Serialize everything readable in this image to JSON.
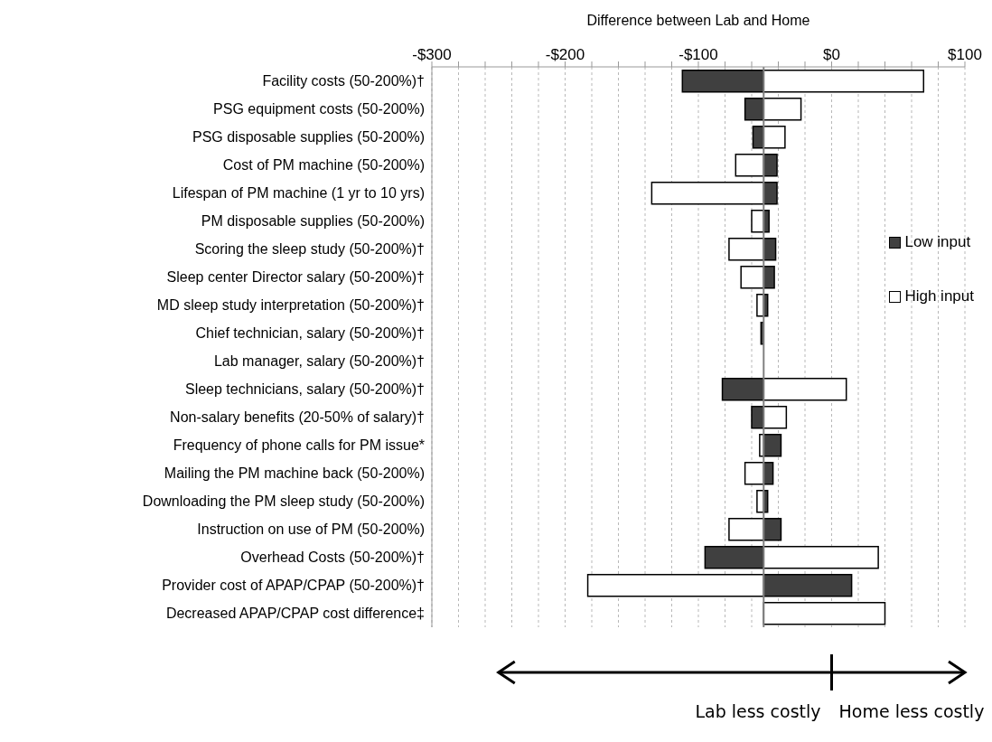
{
  "chart_data": {
    "type": "bar",
    "orientation": "horizontal",
    "xlabel": "Difference between Lab and Home",
    "categories": [
      "Facility costs (50-200%)†",
      "PSG equipment costs (50-200%)",
      "PSG disposable supplies (50-200%)",
      "Cost of PM machine (50-200%)",
      "Lifespan of PM machine (1 yr to 10 yrs)",
      "PM disposable supplies (50-200%)",
      "Scoring the sleep study (50-200%)†",
      "Sleep center Director salary (50-200%)†",
      "MD sleep study interpretation (50-200%)†",
      "Chief technician, salary (50-200%)†",
      "Lab manager, salary (50-200%)†",
      "Sleep technicians, salary (50-200%)†",
      "Non-salary benefits (20-50% of salary)†",
      "Frequency of phone calls for PM issue*",
      "Mailing the PM machine back (50-200%)",
      "Downloading the PM sleep study (50-200%)",
      "Instruction on use of PM (50-200%)",
      "Overhead Costs (50-200%)†",
      "Provider cost of APAP/CPAP (50-200%)†",
      "Decreased APAP/CPAP cost difference‡"
    ],
    "series": [
      {
        "name": "Low input",
        "color": "#404040",
        "base": [
          -51,
          -51,
          -51,
          -51,
          -51,
          -51,
          -51,
          -51,
          -51,
          -51,
          null,
          -51,
          -51,
          -51,
          -51,
          -51,
          -51,
          -51,
          -51,
          null
        ],
        "values": [
          -61,
          -14,
          -8,
          10,
          10,
          4,
          9,
          8,
          3,
          -2,
          null,
          -31,
          -9,
          13,
          7,
          3,
          13,
          -44,
          66,
          null
        ]
      },
      {
        "name": "High input",
        "color": "#ffffff",
        "base": [
          -51,
          -51,
          -51,
          -51,
          -51,
          -51,
          -51,
          -51,
          -51,
          null,
          null,
          -51,
          -51,
          -51,
          -51,
          -51,
          -51,
          -51,
          -51,
          -51
        ],
        "values": [
          120,
          28,
          16,
          -21,
          -84,
          -9,
          -26,
          -17,
          -5,
          null,
          null,
          62,
          17,
          -3,
          -14,
          -5,
          -26,
          86,
          -132,
          91
        ]
      }
    ],
    "xlim": [
      -300,
      100
    ],
    "xticks": [
      {
        "value": -300,
        "label": "-$300"
      },
      {
        "value": -280,
        "label": null
      },
      {
        "value": -260,
        "label": null
      },
      {
        "value": -240,
        "label": null
      },
      {
        "value": -220,
        "label": null
      },
      {
        "value": -200,
        "label": "-$200"
      },
      {
        "value": -180,
        "label": null
      },
      {
        "value": -160,
        "label": null
      },
      {
        "value": -140,
        "label": null
      },
      {
        "value": -120,
        "label": null
      },
      {
        "value": -100,
        "label": "-$100"
      },
      {
        "value": -80,
        "label": null
      },
      {
        "value": -60,
        "label": null
      },
      {
        "value": -40,
        "label": null
      },
      {
        "value": -20,
        "label": null
      },
      {
        "value": 0,
        "label": "$0"
      },
      {
        "value": 20,
        "label": null
      },
      {
        "value": 40,
        "label": null
      },
      {
        "value": 60,
        "label": null
      },
      {
        "value": 80,
        "label": null
      },
      {
        "value": 100,
        "label": "$100"
      }
    ],
    "ref_lines": [
      {
        "axis": "x",
        "value": -51,
        "color": "#808080"
      }
    ],
    "grid": "x",
    "legend": "right",
    "annotations": [
      "Lab less costly",
      "Home less costly"
    ]
  }
}
